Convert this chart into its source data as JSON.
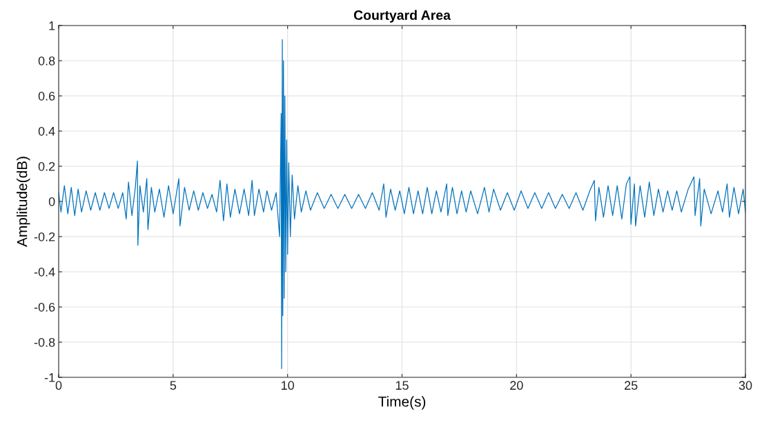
{
  "chart_data": {
    "type": "line",
    "title": "Courtyard Area",
    "xlabel": "Time(s)",
    "ylabel": "Amplitude(dB)",
    "x": [
      0.0,
      0.1,
      0.25,
      0.4,
      0.55,
      0.7,
      0.85,
      1.0,
      1.2,
      1.4,
      1.6,
      1.8,
      2.0,
      2.2,
      2.4,
      2.6,
      2.8,
      2.95,
      3.05,
      3.2,
      3.35,
      3.44,
      3.46,
      3.55,
      3.7,
      3.85,
      3.9,
      4.05,
      4.2,
      4.4,
      4.6,
      4.8,
      5.0,
      5.25,
      5.3,
      5.5,
      5.7,
      5.9,
      6.1,
      6.3,
      6.5,
      6.7,
      6.9,
      7.05,
      7.2,
      7.35,
      7.5,
      7.7,
      7.9,
      8.1,
      8.3,
      8.45,
      8.55,
      8.75,
      8.95,
      9.1,
      9.3,
      9.5,
      9.65,
      9.72,
      9.74,
      9.77,
      9.79,
      9.82,
      9.85,
      9.88,
      9.92,
      9.96,
      10.0,
      10.05,
      10.12,
      10.2,
      10.3,
      10.45,
      10.6,
      10.8,
      11.0,
      11.3,
      11.6,
      11.9,
      12.2,
      12.5,
      12.8,
      13.1,
      13.4,
      13.7,
      14.0,
      14.2,
      14.3,
      14.5,
      14.7,
      14.9,
      15.1,
      15.3,
      15.5,
      15.7,
      15.9,
      16.1,
      16.3,
      16.5,
      16.7,
      16.95,
      17.0,
      17.2,
      17.4,
      17.6,
      17.8,
      18.0,
      18.3,
      18.6,
      18.8,
      19.0,
      19.3,
      19.6,
      19.9,
      20.2,
      20.5,
      20.8,
      21.1,
      21.4,
      21.7,
      22.0,
      22.3,
      22.6,
      22.9,
      23.2,
      23.4,
      23.45,
      23.6,
      23.8,
      24.0,
      24.2,
      24.4,
      24.6,
      24.8,
      24.95,
      25.0,
      25.15,
      25.2,
      25.4,
      25.6,
      25.8,
      26.0,
      26.2,
      26.4,
      26.6,
      26.8,
      27.0,
      27.2,
      27.5,
      27.75,
      27.8,
      28.0,
      28.05,
      28.2,
      28.5,
      28.8,
      29.0,
      29.2,
      29.3,
      29.5,
      29.7,
      29.9,
      30.0
    ],
    "series": [
      {
        "color": "#0072bd",
        "values": [
          0.05,
          -0.06,
          0.09,
          -0.07,
          0.08,
          -0.08,
          0.07,
          -0.06,
          0.06,
          -0.05,
          0.05,
          -0.05,
          0.05,
          -0.04,
          0.05,
          -0.04,
          0.05,
          -0.1,
          0.11,
          -0.08,
          0.08,
          0.23,
          -0.25,
          0.09,
          -0.06,
          0.13,
          -0.16,
          0.08,
          -0.06,
          0.07,
          -0.09,
          0.09,
          -0.07,
          0.13,
          -0.14,
          0.08,
          -0.05,
          0.06,
          -0.05,
          0.05,
          -0.04,
          0.04,
          -0.06,
          0.12,
          -0.11,
          0.1,
          -0.09,
          0.07,
          -0.07,
          0.07,
          -0.08,
          0.12,
          -0.08,
          0.07,
          -0.06,
          0.06,
          -0.05,
          0.05,
          -0.2,
          0.5,
          -0.95,
          0.92,
          -0.65,
          0.8,
          -0.55,
          0.6,
          -0.4,
          0.35,
          -0.3,
          0.22,
          -0.2,
          0.15,
          -0.1,
          0.09,
          -0.06,
          0.06,
          -0.05,
          0.05,
          -0.04,
          0.04,
          -0.04,
          0.04,
          -0.04,
          0.04,
          -0.04,
          0.05,
          -0.05,
          0.1,
          -0.09,
          0.07,
          -0.05,
          0.06,
          -0.07,
          0.08,
          -0.07,
          0.06,
          -0.07,
          0.08,
          -0.07,
          0.06,
          -0.06,
          0.1,
          -0.08,
          0.08,
          -0.07,
          0.06,
          -0.06,
          0.06,
          -0.07,
          0.08,
          -0.06,
          0.07,
          -0.05,
          0.05,
          -0.05,
          0.06,
          -0.04,
          0.05,
          -0.04,
          0.05,
          -0.04,
          0.04,
          -0.04,
          0.05,
          -0.05,
          0.06,
          0.12,
          -0.11,
          0.08,
          -0.09,
          0.09,
          -0.08,
          0.09,
          -0.1,
          0.1,
          0.14,
          -0.13,
          0.1,
          -0.14,
          0.09,
          -0.09,
          0.11,
          -0.08,
          0.07,
          -0.06,
          0.06,
          -0.05,
          0.06,
          -0.06,
          0.07,
          0.14,
          -0.08,
          0.13,
          -0.14,
          0.07,
          -0.07,
          0.06,
          -0.06,
          0.1,
          -0.09,
          0.08,
          -0.07,
          0.07,
          -0.06
        ]
      }
    ],
    "xlim": [
      0,
      30
    ],
    "xticks": [
      0,
      5,
      10,
      15,
      20,
      25,
      30
    ],
    "ylim": [
      -1,
      1
    ],
    "yticks": [
      -1,
      -0.8,
      -0.6,
      -0.4,
      -0.2,
      0,
      0.2,
      0.4,
      0.6,
      0.8,
      1
    ],
    "grid": true,
    "line_style": "solid"
  }
}
